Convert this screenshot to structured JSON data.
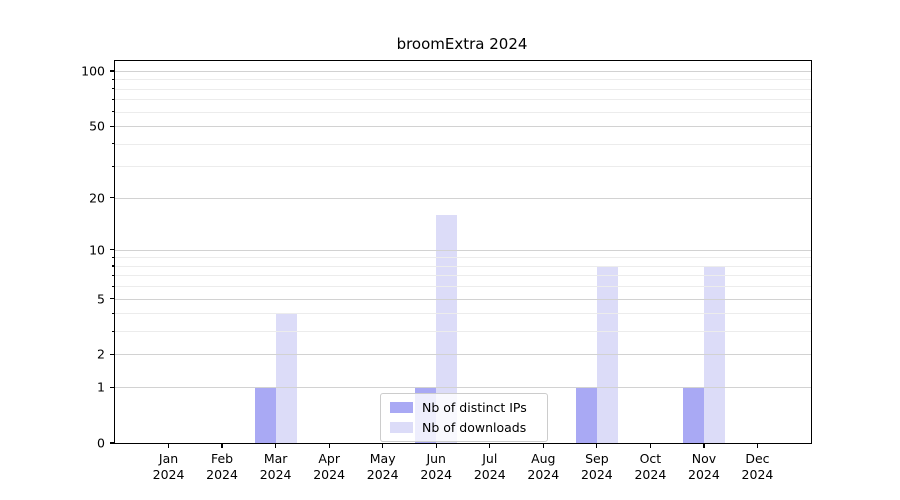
{
  "title": "broomExtra 2024",
  "chart_data": {
    "type": "bar",
    "title": "broomExtra 2024",
    "scale": "log1p",
    "categories": [
      "Jan 2024",
      "Feb 2024",
      "Mar 2024",
      "Apr 2024",
      "May 2024",
      "Jun 2024",
      "Jul 2024",
      "Aug 2024",
      "Sep 2024",
      "Oct 2024",
      "Nov 2024",
      "Dec 2024"
    ],
    "series": [
      {
        "name": "Nb of distinct IPs",
        "color": "#a9a9f4",
        "values": [
          0,
          0,
          1,
          0,
          0,
          1,
          0,
          0,
          1,
          0,
          1,
          0
        ]
      },
      {
        "name": "Nb of downloads",
        "color": "#dcdcf8",
        "values": [
          0,
          0,
          4,
          0,
          0,
          16,
          0,
          0,
          8,
          0,
          8,
          0
        ]
      }
    ],
    "xlabel": "",
    "ylabel": "",
    "y_ticks": [
      0,
      1,
      2,
      5,
      10,
      20,
      50,
      100
    ],
    "y_minor_ticks": [
      3,
      4,
      6,
      7,
      8,
      9,
      30,
      40,
      60,
      70,
      80,
      90
    ],
    "ylim": [
      0,
      113
    ],
    "grid": true,
    "legend_position": "lower center inside"
  },
  "colors": {
    "grid_major": "#d2d2d2",
    "grid_minor": "#ececec",
    "spine": "#000000",
    "background": "#ffffff",
    "legend_border": "#cccccc"
  }
}
